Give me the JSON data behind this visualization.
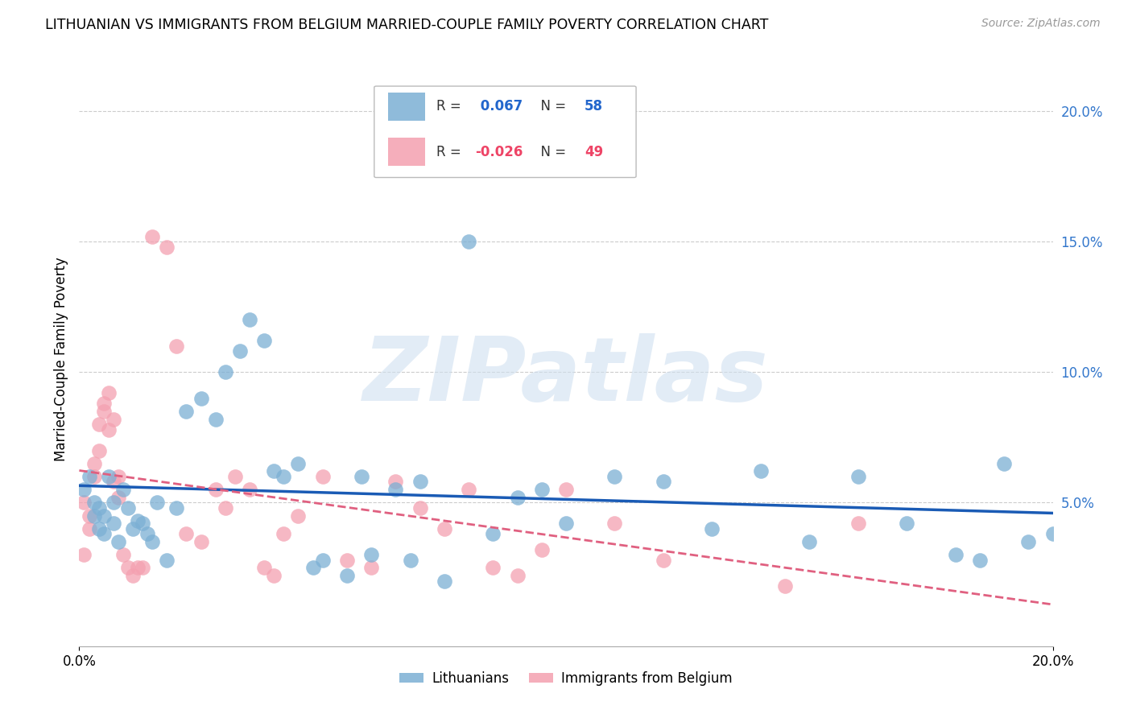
{
  "title": "LITHUANIAN VS IMMIGRANTS FROM BELGIUM MARRIED-COUPLE FAMILY POVERTY CORRELATION CHART",
  "source": "Source: ZipAtlas.com",
  "ylabel": "Married-Couple Family Poverty",
  "right_yticks": [
    "20.0%",
    "15.0%",
    "10.0%",
    "5.0%"
  ],
  "right_ytick_vals": [
    0.2,
    0.15,
    0.1,
    0.05
  ],
  "xlim": [
    0.0,
    0.2
  ],
  "ylim": [
    -0.005,
    0.215
  ],
  "blue_r": 0.067,
  "blue_n": 58,
  "pink_r": -0.026,
  "pink_n": 49,
  "watermark": "ZIPatlas",
  "blue_color": "#7BAFD4",
  "pink_color": "#F4A0B0",
  "trendline_blue": "#1A5BB5",
  "trendline_pink": "#E06080",
  "blue_scatter_x": [
    0.001,
    0.002,
    0.003,
    0.003,
    0.004,
    0.004,
    0.005,
    0.005,
    0.006,
    0.007,
    0.007,
    0.008,
    0.009,
    0.01,
    0.011,
    0.012,
    0.013,
    0.014,
    0.015,
    0.016,
    0.018,
    0.02,
    0.022,
    0.025,
    0.028,
    0.03,
    0.033,
    0.035,
    0.038,
    0.04,
    0.042,
    0.045,
    0.048,
    0.05,
    0.055,
    0.058,
    0.06,
    0.065,
    0.068,
    0.07,
    0.075,
    0.08,
    0.085,
    0.09,
    0.095,
    0.1,
    0.11,
    0.12,
    0.13,
    0.14,
    0.15,
    0.16,
    0.17,
    0.18,
    0.185,
    0.19,
    0.195,
    0.2
  ],
  "blue_scatter_y": [
    0.055,
    0.06,
    0.05,
    0.045,
    0.048,
    0.04,
    0.045,
    0.038,
    0.06,
    0.05,
    0.042,
    0.035,
    0.055,
    0.048,
    0.04,
    0.043,
    0.042,
    0.038,
    0.035,
    0.05,
    0.028,
    0.048,
    0.085,
    0.09,
    0.082,
    0.1,
    0.108,
    0.12,
    0.112,
    0.062,
    0.06,
    0.065,
    0.025,
    0.028,
    0.022,
    0.06,
    0.03,
    0.055,
    0.028,
    0.058,
    0.02,
    0.15,
    0.038,
    0.052,
    0.055,
    0.042,
    0.06,
    0.058,
    0.04,
    0.062,
    0.035,
    0.06,
    0.042,
    0.03,
    0.028,
    0.065,
    0.035,
    0.038
  ],
  "pink_scatter_x": [
    0.001,
    0.001,
    0.002,
    0.002,
    0.003,
    0.003,
    0.004,
    0.004,
    0.005,
    0.005,
    0.006,
    0.006,
    0.007,
    0.007,
    0.008,
    0.008,
    0.009,
    0.01,
    0.011,
    0.012,
    0.013,
    0.015,
    0.018,
    0.02,
    0.022,
    0.025,
    0.028,
    0.03,
    0.032,
    0.035,
    0.038,
    0.04,
    0.042,
    0.045,
    0.05,
    0.055,
    0.06,
    0.065,
    0.07,
    0.075,
    0.08,
    0.085,
    0.09,
    0.095,
    0.1,
    0.11,
    0.12,
    0.145,
    0.16
  ],
  "pink_scatter_y": [
    0.03,
    0.05,
    0.04,
    0.045,
    0.06,
    0.065,
    0.07,
    0.08,
    0.085,
    0.088,
    0.092,
    0.078,
    0.082,
    0.058,
    0.06,
    0.052,
    0.03,
    0.025,
    0.022,
    0.025,
    0.025,
    0.152,
    0.148,
    0.11,
    0.038,
    0.035,
    0.055,
    0.048,
    0.06,
    0.055,
    0.025,
    0.022,
    0.038,
    0.045,
    0.06,
    0.028,
    0.025,
    0.058,
    0.048,
    0.04,
    0.055,
    0.025,
    0.022,
    0.032,
    0.055,
    0.042,
    0.028,
    0.018,
    0.042
  ],
  "background_color": "#FFFFFF",
  "grid_color": "#CCCCCC"
}
